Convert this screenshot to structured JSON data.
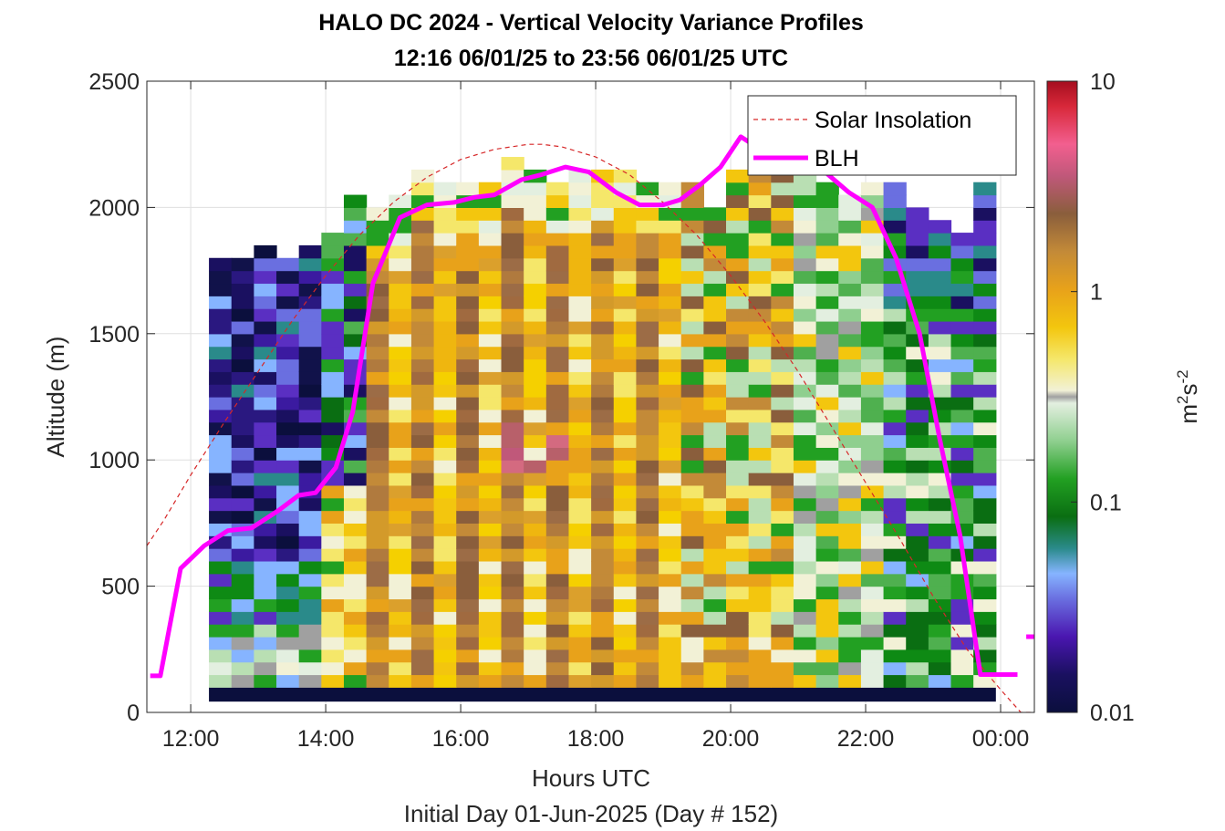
{
  "chart_data": {
    "type": "heatmap",
    "title": "HALO DC 2024 - Vertical Velocity Variance Profiles",
    "subtitle": "12:16 06/01/25 to 23:56 06/01/25  UTC",
    "xlabel": "Hours UTC",
    "xlabel2": "Initial Day 01-Jun-2025 (Day # 152)",
    "ylabel": "Altitude (m)",
    "xlim": [
      11.35,
      24.5
    ],
    "ylim": [
      0,
      2500
    ],
    "x_ticks": [
      12,
      14,
      16,
      18,
      20,
      22,
      24
    ],
    "x_tick_labels": [
      "12:00",
      "14:00",
      "16:00",
      "18:00",
      "20:00",
      "22:00",
      "00:00"
    ],
    "y_ticks": [
      0,
      500,
      1000,
      1500,
      2000,
      2500
    ],
    "y_tick_labels": [
      "0",
      "500",
      "1000",
      "1500",
      "2000",
      "2500"
    ],
    "grid": true,
    "legend_position": "top-right",
    "colorbar": {
      "label_base": "m",
      "label_sup1": "2",
      "label_mid": "s",
      "label_sup2": "-2",
      "scale": "log",
      "range": [
        0.01,
        10
      ],
      "ticks": [
        0.01,
        0.1,
        1,
        10
      ],
      "tick_labels": [
        "0.01",
        "0.1",
        "1",
        "10"
      ]
    },
    "heatmap": {
      "time_start": 12.27,
      "time_end": 23.93,
      "columns": 35,
      "alt_bottom": 100,
      "bin_size": 50,
      "bin_count": 40,
      "top_altitudes": [
        1775,
        1775,
        1825,
        1775,
        1825,
        1875,
        2025,
        1975,
        2025,
        2125,
        2075,
        2075,
        2075,
        2175,
        2125,
        2075,
        2125,
        2125,
        2125,
        2075,
        2075,
        2075,
        1975,
        2125,
        2225,
        2325,
        2175,
        2075,
        2025,
        2075,
        2075,
        1975,
        1925,
        1875,
        2075
      ],
      "low_variance_base_altitude": 100
    },
    "series": [
      {
        "name": "Solar Insolation",
        "style": "dashed",
        "color": "#d62728",
        "x": [
          11.35,
          11.6,
          12.0,
          12.5,
          13.0,
          13.5,
          14.0,
          14.5,
          15.0,
          15.5,
          16.0,
          16.5,
          17.0,
          17.2,
          17.5,
          18.0,
          18.5,
          19.0,
          19.5,
          20.0,
          20.5,
          21.0,
          21.5,
          22.0,
          22.5,
          23.0,
          23.5,
          24.0,
          24.2,
          24.3,
          24.4,
          24.5
        ],
        "values": [
          660,
          760,
          940,
          1150,
          1350,
          1550,
          1730,
          1890,
          2020,
          2120,
          2190,
          2230,
          2250,
          2250,
          2240,
          2200,
          2130,
          2020,
          1890,
          1730,
          1550,
          1350,
          1130,
          910,
          690,
          460,
          250,
          90,
          30,
          0,
          0,
          0
        ]
      },
      {
        "name": "BLH",
        "style": "solid",
        "color": "#ff00ff",
        "x": [
          11.4,
          11.55,
          11.85,
          12.2,
          12.55,
          12.9,
          13.3,
          13.6,
          13.85,
          14.15,
          14.4,
          14.7,
          15.1,
          15.5,
          15.9,
          16.2,
          16.5,
          16.9,
          17.2,
          17.55,
          17.9,
          18.3,
          18.65,
          19.0,
          19.25,
          19.55,
          19.85,
          20.15,
          20.5,
          20.75,
          21.05,
          21.4,
          21.75,
          22.1,
          22.45,
          22.8,
          23.1,
          23.4,
          23.7,
          23.9,
          24.05,
          24.25
        ],
        "values": [
          145,
          145,
          570,
          660,
          720,
          730,
          800,
          860,
          870,
          970,
          1190,
          1700,
          1960,
          2010,
          2020,
          2040,
          2050,
          2110,
          2130,
          2160,
          2140,
          2060,
          2010,
          2010,
          2030,
          2090,
          2160,
          2280,
          2220,
          2180,
          2160,
          2140,
          2060,
          2000,
          1800,
          1500,
          1080,
          700,
          150,
          150,
          150,
          150
        ]
      },
      {
        "name": "",
        "style": "solid",
        "color": "#ff00ff",
        "x": [
          24.38,
          24.5
        ],
        "values": [
          300,
          300
        ]
      }
    ]
  }
}
